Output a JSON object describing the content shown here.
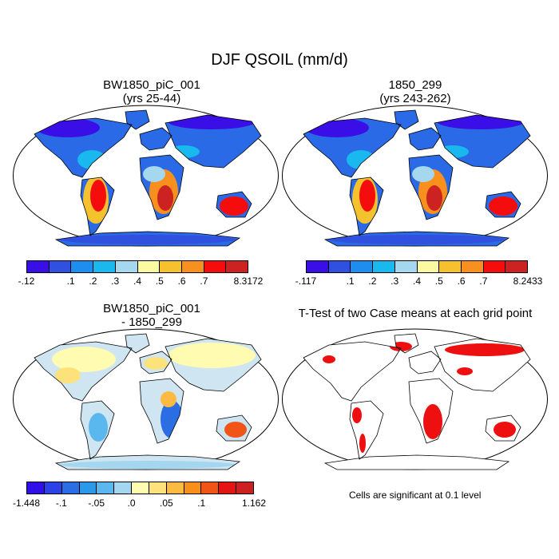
{
  "figure_title": "DJF QSOIL (mm/d)",
  "panels": [
    {
      "title": "BW1850_piC_001\n(yrs 25-44)",
      "kind": "mean"
    },
    {
      "title": "1850_299\n(yrs 243-262)",
      "kind": "mean"
    },
    {
      "title": "BW1850_piC_001\n- 1850_299",
      "kind": "diff"
    },
    {
      "title": "T-Test of two Case means at each grid point",
      "kind": "ttest"
    }
  ],
  "colorbars": {
    "mean_colors": [
      "#3a0ee6",
      "#3050e0",
      "#1d8ef0",
      "#19b8ef",
      "#a5d8ee",
      "#fafaa0",
      "#f5c22e",
      "#f7901e",
      "#f50c0c",
      "#cd2222"
    ],
    "diff_colors": [
      "#3010e8",
      "#2d42e6",
      "#2b6ee4",
      "#2a99ea",
      "#5bb8ee",
      "#a5d6f0",
      "#fffbb0",
      "#fde27c",
      "#fbba42",
      "#f98f1b",
      "#f05416",
      "#e41412",
      "#cb2121"
    ],
    "bar1_labels": [
      "-.12",
      "",
      ".1",
      ".2",
      ".3",
      ".4",
      ".5",
      ".6",
      ".7",
      "",
      "8.3172"
    ],
    "bar2_labels": [
      "-.117",
      "",
      ".1",
      ".2",
      ".3",
      ".4",
      ".5",
      ".6",
      ".7",
      "",
      "8.2433"
    ],
    "bar3_labels": [
      "-1.448",
      "",
      "-.1",
      "",
      "-.05",
      "",
      ".0",
      "",
      ".05",
      "",
      ".1",
      "",
      "",
      "1.162"
    ]
  },
  "significance_note": "Cells are significant at 0.1 level"
}
